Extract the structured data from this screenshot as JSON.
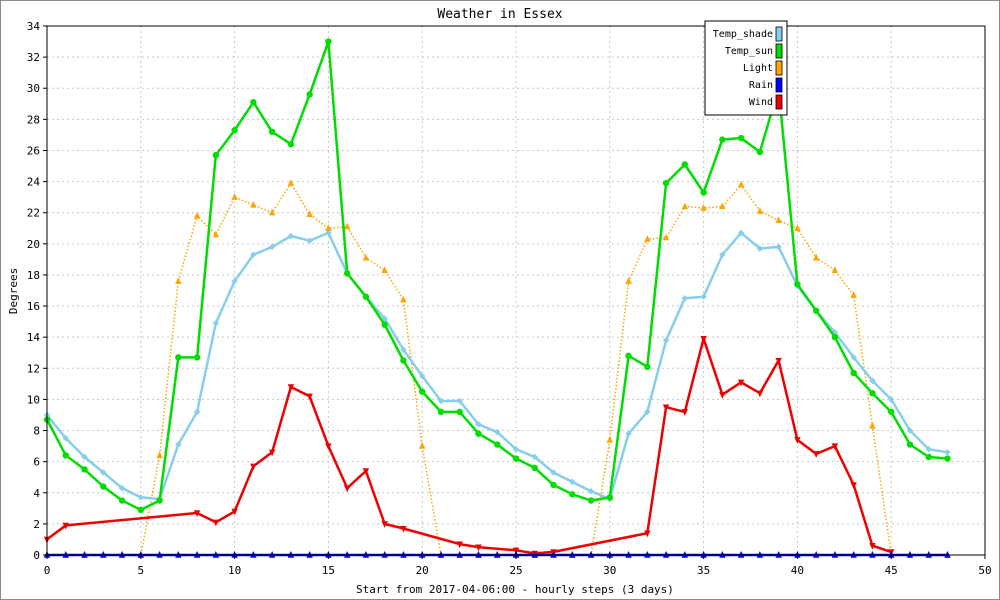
{
  "chart_data": {
    "type": "line",
    "title": "Weather in Essex",
    "xlabel": "Start from 2017-04-06:00 - hourly steps (3 days)",
    "ylabel": "Degrees",
    "xlim": [
      0,
      50
    ],
    "ylim": [
      0,
      34
    ],
    "xticks": [
      0,
      5,
      10,
      15,
      20,
      25,
      30,
      35,
      40,
      45,
      50
    ],
    "yticks": [
      0,
      2,
      4,
      6,
      8,
      10,
      12,
      14,
      16,
      18,
      20,
      22,
      24,
      26,
      28,
      30,
      32,
      34
    ],
    "grid": true,
    "legend_position": "top-right",
    "x": [
      0,
      1,
      2,
      3,
      4,
      5,
      6,
      7,
      8,
      9,
      10,
      11,
      12,
      13,
      14,
      15,
      16,
      17,
      18,
      19,
      20,
      21,
      22,
      23,
      24,
      25,
      26,
      27,
      28,
      29,
      30,
      31,
      32,
      33,
      34,
      35,
      36,
      37,
      38,
      39,
      40,
      41,
      42,
      43,
      44,
      45,
      46,
      47,
      48
    ],
    "series": [
      {
        "name": "Temp_shade",
        "color": "#87ceeb",
        "style": "solid",
        "marker": "diamond",
        "values": [
          9.0,
          7.5,
          6.3,
          5.3,
          4.3,
          3.7,
          3.6,
          7.1,
          9.2,
          14.9,
          17.6,
          19.3,
          19.8,
          20.5,
          20.2,
          20.7,
          18.1,
          16.6,
          15.2,
          13.2,
          11.5,
          9.9,
          9.9,
          8.4,
          7.9,
          6.8,
          6.3,
          5.3,
          4.7,
          4.1,
          3.6,
          7.8,
          9.2,
          13.8,
          16.5,
          16.6,
          19.3,
          20.7,
          19.7,
          19.8,
          17.3,
          15.7,
          14.3,
          12.7,
          11.2,
          10.0,
          8.0,
          6.8,
          6.6
        ]
      },
      {
        "name": "Temp_sun",
        "color": "#00dd00",
        "style": "solid",
        "marker": "circle",
        "values": [
          8.7,
          6.4,
          5.5,
          4.4,
          3.5,
          2.9,
          3.5,
          12.7,
          12.7,
          25.7,
          27.3,
          29.1,
          27.2,
          26.4,
          29.6,
          33.0,
          18.1,
          16.6,
          14.8,
          12.5,
          10.5,
          9.2,
          9.2,
          7.8,
          7.1,
          6.2,
          5.6,
          4.5,
          3.9,
          3.5,
          3.7,
          12.8,
          12.1,
          23.9,
          25.1,
          23.3,
          26.7,
          26.8,
          25.9,
          30.0,
          17.4,
          15.7,
          14.0,
          11.7,
          10.4,
          9.2,
          7.1,
          6.3,
          6.2
        ]
      },
      {
        "name": "Light",
        "color": "#ffa500",
        "style": "dotted",
        "marker": "triangle-up",
        "values": [
          0,
          0,
          0,
          0,
          0,
          0,
          6.4,
          17.6,
          21.8,
          20.6,
          23.0,
          22.5,
          22.0,
          23.9,
          21.9,
          21.0,
          21.1,
          19.1,
          18.3,
          16.4,
          7.0,
          0,
          0,
          0,
          0,
          0,
          0,
          0,
          0,
          0,
          7.4,
          17.6,
          20.3,
          20.4,
          22.4,
          22.3,
          22.4,
          23.8,
          22.1,
          21.5,
          21.0,
          19.1,
          18.3,
          16.7,
          8.3,
          0,
          0,
          0,
          0
        ]
      },
      {
        "name": "Rain",
        "color": "#0000ff",
        "style": "solid",
        "marker": "triangle-up",
        "values": [
          0,
          0,
          0,
          0,
          0,
          0,
          0,
          0,
          0,
          0,
          0,
          0,
          0,
          0,
          0,
          0,
          0,
          0,
          0,
          0,
          0,
          0,
          0,
          0,
          0,
          0,
          0,
          0,
          0,
          0,
          0,
          0,
          0,
          0,
          0,
          0,
          0,
          0,
          0,
          0,
          0,
          0,
          0,
          0,
          0,
          0,
          0,
          0,
          0
        ]
      },
      {
        "name": "Wind",
        "color": "#ee0000",
        "style": "solid",
        "marker": "triangle-down",
        "points": [
          [
            0,
            1.0
          ],
          [
            1,
            1.9
          ],
          [
            8,
            2.7
          ],
          [
            9,
            2.1
          ],
          [
            10,
            2.8
          ],
          [
            11,
            5.7
          ],
          [
            12,
            6.6
          ],
          [
            13,
            10.8
          ],
          [
            14,
            10.2
          ],
          [
            15,
            7.0
          ],
          [
            16,
            4.3
          ],
          [
            17,
            5.4
          ],
          [
            18,
            2.0
          ],
          [
            19,
            1.7
          ],
          [
            22,
            0.7
          ],
          [
            23,
            0.5
          ],
          [
            25,
            0.3
          ],
          [
            26,
            0.1
          ],
          [
            27,
            0.2
          ],
          [
            32,
            1.4
          ],
          [
            33,
            9.5
          ],
          [
            34,
            9.2
          ],
          [
            35,
            13.9
          ],
          [
            36,
            10.3
          ],
          [
            37,
            11.1
          ],
          [
            38,
            10.4
          ],
          [
            39,
            12.5
          ],
          [
            40,
            7.4
          ],
          [
            41,
            6.5
          ],
          [
            42,
            7.0
          ],
          [
            43,
            4.5
          ],
          [
            44,
            0.6
          ],
          [
            45,
            0.2
          ]
        ]
      }
    ]
  }
}
